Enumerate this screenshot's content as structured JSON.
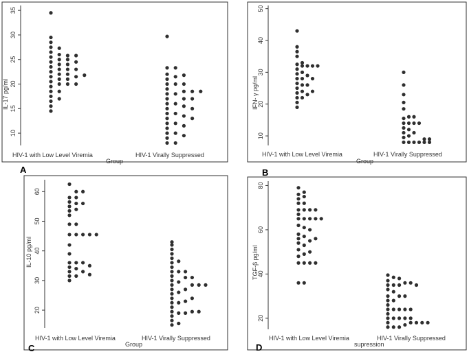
{
  "chart_data": [
    {
      "panel": "A",
      "type": "scatter",
      "ylabel": "IL-17 pg/ml",
      "xlabel": "Group",
      "ylim": [
        7.5,
        36
      ],
      "yticks": [
        10,
        15,
        20,
        25,
        30,
        35
      ],
      "categories": [
        "HIV-1 with Low Level Viremia",
        "HIV-1 Virally Suppressed"
      ],
      "groups": [
        {
          "name": "HIV-1 with Low Level Viremia",
          "columns": [
            [
              14.5,
              15.5,
              16.5,
              17.5,
              18.5,
              19.5,
              20.5,
              21.5,
              22.5,
              23.5,
              24.5,
              25.5,
              26.5,
              27.5,
              28.5,
              29.5,
              34.5
            ],
            [
              17,
              18.5,
              20,
              21,
              22,
              23,
              24,
              25,
              26,
              27.3
            ],
            [
              20,
              21,
              22,
              23,
              24,
              25,
              25.8
            ],
            [
              20,
              21.5,
              23,
              24.5,
              25.8
            ],
            [
              21.8
            ]
          ]
        },
        {
          "name": "HIV-1 Virally Suppressed",
          "columns": [
            [
              8,
              9,
              10,
              11,
              12,
              13,
              14,
              15,
              16,
              17,
              18,
              19,
              20,
              21,
              22,
              23.3,
              29.7
            ],
            [
              8,
              10,
              12,
              14,
              16,
              18,
              20,
              21.5,
              23.3
            ],
            [
              9.5,
              11.5,
              13.5,
              15.5,
              17,
              18.5,
              20,
              21.8
            ],
            [
              13,
              15,
              17,
              18.5
            ],
            [
              18.5
            ]
          ]
        }
      ]
    },
    {
      "panel": "B",
      "type": "scatter",
      "ylabel": "IFN- γ pg/ml",
      "xlabel": "Group",
      "ylim": [
        7,
        51
      ],
      "yticks": [
        10,
        20,
        30,
        40,
        50
      ],
      "categories": [
        "HIV-1 with Low Level Viremia",
        "HIV-1 Virally Suppressed"
      ],
      "groups": [
        {
          "name": "HIV-1 with Low Level Viremia",
          "columns": [
            [
              19,
              20.5,
              22,
              23.5,
              25,
              26.5,
              28,
              29.5,
              31,
              32.5,
              35,
              36.5,
              38,
              43
            ],
            [
              22,
              24,
              26,
              28,
              30,
              32,
              33
            ],
            [
              23,
              26,
              29,
              32
            ],
            [
              24,
              28,
              32
            ],
            [
              32
            ]
          ]
        },
        {
          "name": "HIV-1 Virally Suppressed",
          "columns": [
            [
              8,
              9.5,
              11,
              12.5,
              14,
              15.5,
              18.5,
              20.5,
              23,
              26,
              30
            ],
            [
              8,
              10,
              12,
              14,
              16
            ],
            [
              8,
              11,
              14,
              16
            ],
            [
              8,
              14
            ],
            [
              8,
              9
            ],
            [
              8,
              9
            ]
          ]
        }
      ]
    },
    {
      "panel": "C",
      "type": "scatter",
      "ylabel": "IL-10 pg/ml",
      "xlabel": "Group",
      "ylim": [
        14,
        64
      ],
      "yticks": [
        20,
        30,
        40,
        50,
        60
      ],
      "categories": [
        "HIV-1 with Low Level Viremia",
        "HIV-1 Virally Suppressed"
      ],
      "groups": [
        {
          "name": "HIV-1 with Low Level Viremia",
          "columns": [
            [
              30,
              31.5,
              33,
              34.5,
              36,
              39,
              42,
              45.5,
              49,
              52,
              53.5,
              55,
              56.5,
              58,
              62.5
            ],
            [
              31.5,
              34,
              36,
              45.5,
              49,
              54,
              56,
              58,
              60
            ],
            [
              33,
              36,
              45.5,
              56,
              60
            ],
            [
              32,
              35,
              45.5
            ],
            [
              45.5
            ]
          ]
        },
        {
          "name": "HIV-1 Virally Suppressed",
          "columns": [
            [
              15,
              16.5,
              18,
              19.5,
              21,
              22.5,
              24,
              25.5,
              27,
              28.5,
              30,
              31.5,
              33,
              34.5,
              36,
              37.5,
              39,
              40.5,
              42,
              43
            ],
            [
              15.5,
              19,
              22.5,
              26,
              29.5,
              33,
              36.5
            ],
            [
              19,
              23,
              27,
              31,
              33
            ],
            [
              19.5,
              24,
              28.5,
              31
            ],
            [
              19.5,
              28.5
            ],
            [
              28.5
            ]
          ]
        }
      ]
    },
    {
      "panel": "D",
      "type": "scatter",
      "ylabel": "TGF-β pg/ml",
      "xlabel": "supression",
      "ylim": [
        15,
        82
      ],
      "yticks": [
        20,
        40,
        60,
        80
      ],
      "categories": [
        "HIV-1 with Low Level Viremia",
        "HIV-1 Virally Suppressed"
      ],
      "groups": [
        {
          "name": "HIV-1 with Low Level Viremia",
          "columns": [
            [
              36,
              45,
              48,
              51,
              54,
              56,
              58,
              62,
              65,
              67,
              69,
              72,
              74,
              76,
              79
            ],
            [
              36,
              45,
              49,
              53,
              57,
              61,
              65,
              69,
              72,
              75,
              77
            ],
            [
              45,
              50,
              55,
              60,
              65,
              69
            ],
            [
              45,
              56,
              65,
              69
            ],
            [
              65
            ]
          ]
        },
        {
          "name": "HIV-1 Virally Suppressed",
          "columns": [
            [
              16,
              18,
              20,
              22,
              24,
              26,
              28,
              30,
              33,
              35,
              37,
              39.5
            ],
            [
              16,
              20,
              24,
              28,
              32,
              35,
              38.5
            ],
            [
              16,
              20,
              24,
              30,
              35,
              38
            ],
            [
              17,
              20,
              24,
              30,
              36
            ],
            [
              18,
              20,
              24,
              36
            ],
            [
              18,
              35
            ],
            [
              18
            ],
            [
              18
            ]
          ]
        }
      ]
    }
  ]
}
